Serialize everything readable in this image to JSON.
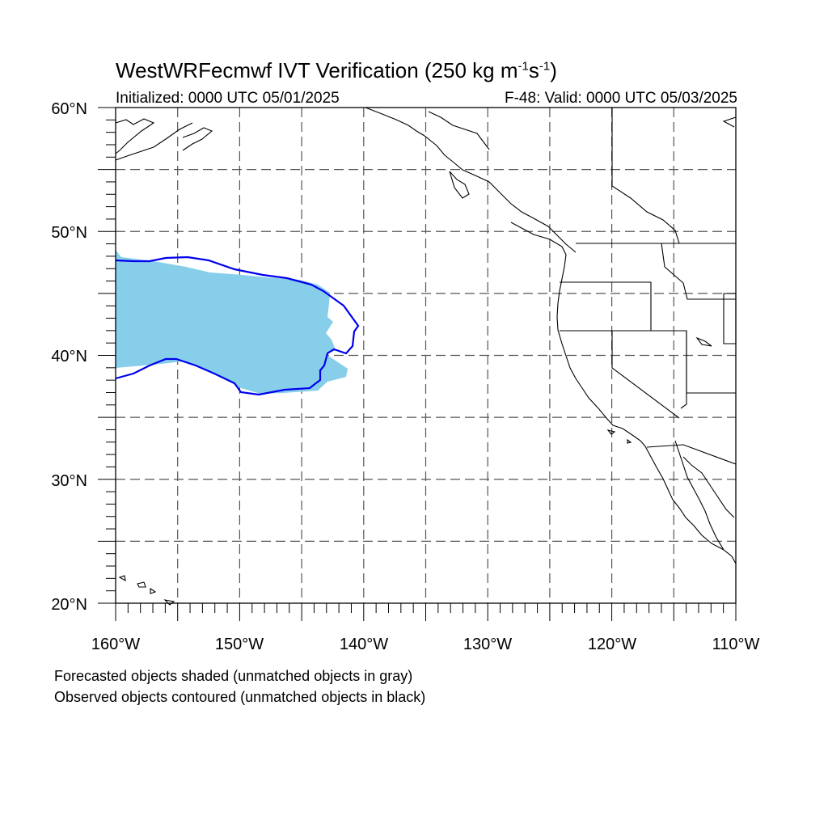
{
  "title": {
    "prefix": "WestWRFecmwf IVT Verification (250 kg m",
    "exp1": "-1",
    "mid": "s",
    "exp2": "-1",
    "suffix": ")"
  },
  "subtitle_left": "Initialized: 0000 UTC 05/01/2025",
  "subtitle_right": "F-48: Valid: 0000 UTC 05/03/2025",
  "map": {
    "extent": {
      "lon_min": -160,
      "lon_max": -110,
      "lat_min": 20,
      "lat_max": 60
    },
    "gridlines": "dashed",
    "colors": {
      "forecast_shaded": "#87ceeb",
      "observed_contour": "#0000ee",
      "coastline": "#000000",
      "gridline": "#555555"
    }
  },
  "axes": {
    "y_labels": [
      {
        "lat": 60,
        "label": "60°N"
      },
      {
        "lat": 50,
        "label": "50°N"
      },
      {
        "lat": 40,
        "label": "40°N"
      },
      {
        "lat": 30,
        "label": "30°N"
      },
      {
        "lat": 20,
        "label": "20°N"
      }
    ],
    "x_labels": [
      {
        "lon": -160,
        "label": "160°W"
      },
      {
        "lon": -150,
        "label": "150°W"
      },
      {
        "lon": -140,
        "label": "140°W"
      },
      {
        "lon": -130,
        "label": "130°W"
      },
      {
        "lon": -120,
        "label": "120°W"
      },
      {
        "lon": -110,
        "label": "110°W"
      }
    ]
  },
  "legend": {
    "line1": "Forecasted objects shaded (unmatched objects in gray)",
    "line2": "Observed objects contoured (unmatched objects in black)"
  }
}
